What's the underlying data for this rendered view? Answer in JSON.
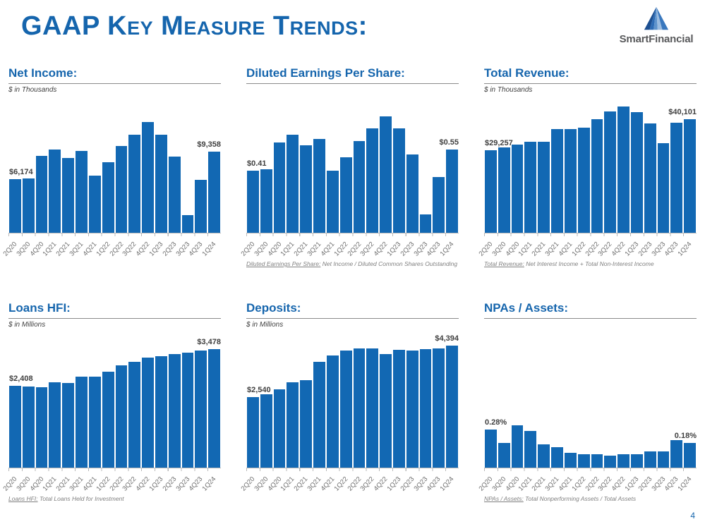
{
  "page": {
    "title": "GAAP Key Measure Trends:",
    "page_number": "4",
    "colors": {
      "accent": "#1565AD",
      "bar": "#1268B3"
    }
  },
  "logo": {
    "text": "SmartFinancial",
    "icon": "pyramid-triangle-icon"
  },
  "chart_data": [
    {
      "type": "bar",
      "title": "Net Income:",
      "subtitle": "$ in Thousands",
      "categories": [
        "2Q20",
        "3Q20",
        "4Q20",
        "1Q21",
        "2Q21",
        "3Q21",
        "4Q21",
        "1Q22",
        "2Q22",
        "3Q22",
        "4Q22",
        "1Q23",
        "2Q23",
        "3Q23",
        "4Q23",
        "1Q24"
      ],
      "values": [
        6174,
        6300,
        8900,
        9650,
        8650,
        9450,
        6600,
        8150,
        10050,
        11350,
        12850,
        11350,
        8800,
        2060,
        6100,
        9358
      ],
      "first_label": "$6,174",
      "last_label": "$9,358",
      "ylim": [
        0,
        15200
      ],
      "grid": false,
      "legend": "none",
      "footnote": null
    },
    {
      "type": "bar",
      "title": "Diluted Earnings Per Share:",
      "subtitle": "",
      "categories": [
        "2Q20",
        "3Q20",
        "4Q20",
        "1Q21",
        "2Q21",
        "3Q21",
        "4Q21",
        "1Q22",
        "2Q22",
        "3Q22",
        "4Q22",
        "1Q23",
        "2Q23",
        "3Q23",
        "4Q23",
        "1Q24"
      ],
      "values": [
        0.41,
        0.42,
        0.6,
        0.65,
        0.58,
        0.62,
        0.41,
        0.5,
        0.61,
        0.69,
        0.77,
        0.69,
        0.52,
        0.12,
        0.37,
        0.55
      ],
      "first_label": "$0.41",
      "last_label": "$0.55",
      "ylim": [
        0,
        0.87
      ],
      "grid": false,
      "legend": "none",
      "footnote": {
        "label": "Diluted Earnings Per Share:",
        "text": " Net Income / Diluted Common Shares Outstanding"
      }
    },
    {
      "type": "bar",
      "title": "Total Revenue:",
      "subtitle": "$ in Thousands",
      "categories": [
        "2Q20",
        "3Q20",
        "4Q20",
        "1Q21",
        "2Q21",
        "3Q21",
        "4Q21",
        "1Q22",
        "2Q22",
        "3Q22",
        "4Q22",
        "1Q23",
        "2Q23",
        "3Q23",
        "4Q23",
        "1Q24"
      ],
      "values": [
        29257,
        30300,
        31300,
        32300,
        32300,
        36600,
        36600,
        37100,
        40100,
        42850,
        44600,
        42600,
        38600,
        31600,
        38850,
        40101
      ],
      "first_label": "$29,257",
      "last_label": "$40,101",
      "ylim": [
        0,
        46400
      ],
      "grid": false,
      "legend": "none",
      "footnote": {
        "label": "Total Revenue:",
        "text": " Net Interest Income + Total Non-Interest Income"
      }
    },
    {
      "type": "bar",
      "title": "Loans HFI:",
      "subtitle": "$ in Millions",
      "categories": [
        "2Q20",
        "3Q20",
        "4Q20",
        "1Q21",
        "2Q21",
        "3Q21",
        "4Q21",
        "1Q22",
        "2Q22",
        "3Q22",
        "4Q22",
        "1Q23",
        "2Q23",
        "3Q23",
        "4Q23",
        "1Q24"
      ],
      "values": [
        2408,
        2390,
        2370,
        2515,
        2480,
        2670,
        2685,
        2815,
        3000,
        3120,
        3240,
        3275,
        3345,
        3380,
        3445,
        3478
      ],
      "first_label": "$2,408",
      "last_label": "$3,478",
      "ylim": [
        0,
        3860
      ],
      "grid": false,
      "legend": "none",
      "footnote": {
        "label": "Loans HFI:",
        "text": " Total Loans Held for Investment"
      }
    },
    {
      "type": "bar",
      "title": "Deposits:",
      "subtitle": "$ in Millions",
      "categories": [
        "2Q20",
        "3Q20",
        "4Q20",
        "1Q21",
        "2Q21",
        "3Q21",
        "4Q21",
        "1Q22",
        "2Q22",
        "3Q22",
        "4Q22",
        "1Q23",
        "2Q23",
        "3Q23",
        "4Q23",
        "1Q24"
      ],
      "values": [
        2540,
        2645,
        2815,
        3065,
        3150,
        3805,
        4030,
        4215,
        4290,
        4290,
        4080,
        4250,
        4200,
        4265,
        4285,
        4394
      ],
      "first_label": "$2,540",
      "last_label": "$4,394",
      "ylim": [
        0,
        4720
      ],
      "grid": false,
      "legend": "none",
      "footnote": null
    },
    {
      "type": "bar",
      "title": "NPAs / Assets:",
      "subtitle": "",
      "categories": [
        "2Q20",
        "3Q20",
        "4Q20",
        "1Q21",
        "2Q21",
        "3Q21",
        "4Q21",
        "1Q22",
        "2Q22",
        "3Q22",
        "4Q22",
        "1Q23",
        "2Q23",
        "3Q23",
        "4Q23",
        "1Q24"
      ],
      "values": [
        0.28,
        0.18,
        0.31,
        0.27,
        0.17,
        0.15,
        0.11,
        0.1,
        0.1,
        0.09,
        0.1,
        0.1,
        0.12,
        0.12,
        0.2,
        0.18
      ],
      "first_label": "0.28%",
      "last_label": "0.18%",
      "ylim": [
        0,
        0.96
      ],
      "grid": false,
      "legend": "none",
      "footnote": {
        "label": "NPAs / Assets:",
        "text": " Total Nonperforming Assets / Total Assets"
      }
    }
  ]
}
